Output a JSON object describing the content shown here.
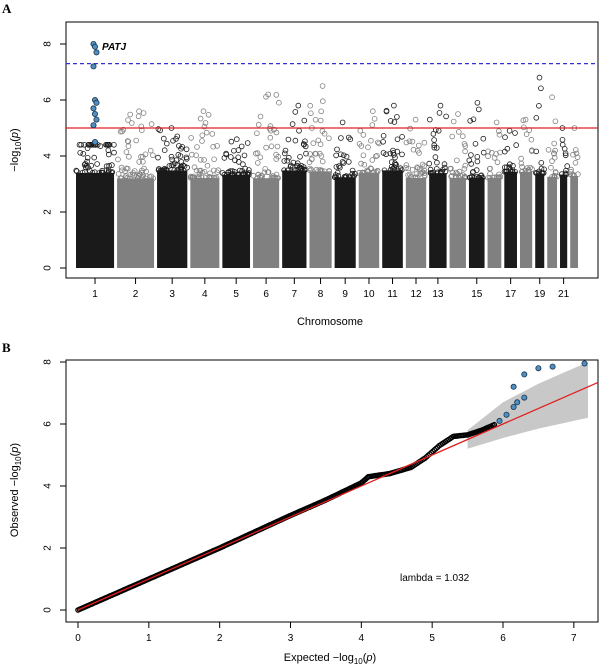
{
  "panel_a_label": "A",
  "panel_b_label": "B",
  "colors": {
    "dark": "#1a1a1a",
    "light": "#808080",
    "highlight": "#4f8fc2",
    "significance_line": "#3333cc",
    "suggestive_line": "#e02020",
    "ci_band": "#c8c8c8"
  },
  "chart_data": [
    {
      "type": "scatter",
      "subtype": "manhattan",
      "xlabel": "Chromosome",
      "ylabel": "−log10(p)",
      "ylim": [
        0,
        8
      ],
      "y_ticks": [
        0,
        2,
        4,
        6,
        8
      ],
      "x_tick_labels": [
        "1",
        "2",
        "3",
        "4",
        "5",
        "6",
        "7",
        "8",
        "9",
        "10",
        "11",
        "12",
        "13",
        "15",
        "17",
        "19",
        "21"
      ],
      "chromosomes": [
        {
          "chr": 1,
          "rel_size": 249,
          "max": 8.0,
          "color": "dark"
        },
        {
          "chr": 2,
          "rel_size": 242,
          "max": 5.6,
          "color": "light"
        },
        {
          "chr": 3,
          "rel_size": 198,
          "max": 5.0,
          "color": "dark"
        },
        {
          "chr": 4,
          "rel_size": 190,
          "max": 5.6,
          "color": "light"
        },
        {
          "chr": 5,
          "rel_size": 181,
          "max": 4.6,
          "color": "dark"
        },
        {
          "chr": 6,
          "rel_size": 171,
          "max": 6.2,
          "color": "light"
        },
        {
          "chr": 7,
          "rel_size": 159,
          "max": 5.8,
          "color": "dark"
        },
        {
          "chr": 8,
          "rel_size": 145,
          "max": 6.5,
          "color": "light"
        },
        {
          "chr": 9,
          "rel_size": 138,
          "max": 5.2,
          "color": "dark"
        },
        {
          "chr": 10,
          "rel_size": 134,
          "max": 5.6,
          "color": "light"
        },
        {
          "chr": 11,
          "rel_size": 135,
          "max": 5.8,
          "color": "dark"
        },
        {
          "chr": 12,
          "rel_size": 133,
          "max": 5.3,
          "color": "light"
        },
        {
          "chr": 13,
          "rel_size": 114,
          "max": 5.8,
          "color": "dark"
        },
        {
          "chr": 14,
          "rel_size": 107,
          "max": 5.5,
          "color": "light"
        },
        {
          "chr": 15,
          "rel_size": 102,
          "max": 5.9,
          "color": "dark"
        },
        {
          "chr": 16,
          "rel_size": 90,
          "max": 5.2,
          "color": "light"
        },
        {
          "chr": 17,
          "rel_size": 83,
          "max": 4.9,
          "color": "dark"
        },
        {
          "chr": 18,
          "rel_size": 80,
          "max": 5.3,
          "color": "light"
        },
        {
          "chr": 19,
          "rel_size": 59,
          "max": 6.8,
          "color": "dark"
        },
        {
          "chr": 20,
          "rel_size": 64,
          "max": 6.1,
          "color": "light"
        },
        {
          "chr": 21,
          "rel_size": 47,
          "max": 5.0,
          "color": "dark"
        },
        {
          "chr": 22,
          "rel_size": 51,
          "max": 5.0,
          "color": "light"
        }
      ],
      "genome_wide_threshold": 7.3,
      "suggestive_threshold": 5.0,
      "highlight_points": [
        {
          "chr": 1,
          "y": 8.0
        },
        {
          "chr": 1,
          "y": 7.9
        },
        {
          "chr": 1,
          "y": 7.7
        },
        {
          "chr": 1,
          "y": 7.2
        },
        {
          "chr": 1,
          "y": 6.0
        },
        {
          "chr": 1,
          "y": 5.9
        },
        {
          "chr": 1,
          "y": 5.7
        },
        {
          "chr": 1,
          "y": 5.5
        },
        {
          "chr": 1,
          "y": 5.3
        },
        {
          "chr": 1,
          "y": 5.1
        },
        {
          "chr": 1,
          "y": 4.5
        }
      ],
      "annotations": [
        {
          "text": "PATJ",
          "chr": 1,
          "y": 7.9
        }
      ]
    },
    {
      "type": "scatter",
      "subtype": "qq",
      "xlabel": "Expected  −log10(p)",
      "ylabel": "Observed  −log10(p)",
      "xlim": [
        0,
        7.2
      ],
      "ylim": [
        0,
        8
      ],
      "x_ticks": [
        0,
        1,
        2,
        3,
        4,
        5,
        6,
        7
      ],
      "y_ticks": [
        0,
        2,
        4,
        6,
        8
      ],
      "reference_line": {
        "slope": 1,
        "intercept": 0
      },
      "lambda_label": "lambda = 1.032",
      "curve": [
        {
          "x": 0,
          "y": 0
        },
        {
          "x": 1,
          "y": 1.0
        },
        {
          "x": 2,
          "y": 2.0
        },
        {
          "x": 3,
          "y": 3.05
        },
        {
          "x": 3.5,
          "y": 3.55
        },
        {
          "x": 4,
          "y": 4.1
        },
        {
          "x": 4.1,
          "y": 4.3
        },
        {
          "x": 4.4,
          "y": 4.4
        },
        {
          "x": 4.7,
          "y": 4.6
        },
        {
          "x": 4.9,
          "y": 4.9
        },
        {
          "x": 5.1,
          "y": 5.3
        },
        {
          "x": 5.3,
          "y": 5.6
        },
        {
          "x": 5.5,
          "y": 5.65
        },
        {
          "x": 5.7,
          "y": 5.8
        },
        {
          "x": 5.9,
          "y": 6.0
        }
      ],
      "highlight_points": [
        {
          "x": 5.95,
          "y": 6.1
        },
        {
          "x": 6.05,
          "y": 6.3
        },
        {
          "x": 6.15,
          "y": 6.55
        },
        {
          "x": 6.2,
          "y": 6.7
        },
        {
          "x": 6.3,
          "y": 6.85
        },
        {
          "x": 6.15,
          "y": 7.2
        },
        {
          "x": 6.3,
          "y": 7.6
        },
        {
          "x": 6.5,
          "y": 7.8
        },
        {
          "x": 6.7,
          "y": 7.85
        },
        {
          "x": 7.15,
          "y": 7.95
        }
      ],
      "ci_band_upper": [
        {
          "x": 5.5,
          "y": 5.8
        },
        {
          "x": 6.0,
          "y": 6.7
        },
        {
          "x": 6.5,
          "y": 7.3
        },
        {
          "x": 7.2,
          "y": 8.0
        }
      ],
      "ci_band_lower": [
        {
          "x": 5.5,
          "y": 5.2
        },
        {
          "x": 6.0,
          "y": 5.55
        },
        {
          "x": 6.5,
          "y": 5.85
        },
        {
          "x": 7.2,
          "y": 6.2
        }
      ]
    }
  ]
}
